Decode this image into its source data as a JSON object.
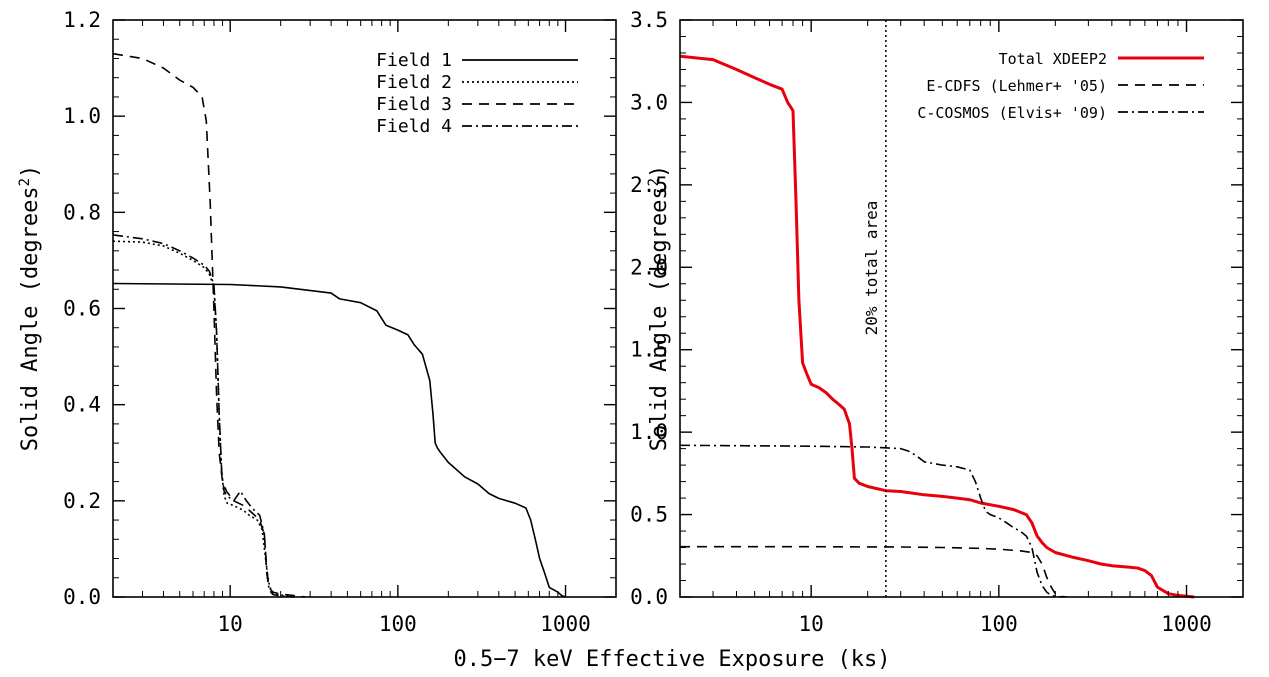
{
  "figure_xlabel": "0.5−7 keV Effective Exposure (ks)",
  "chart_data": [
    {
      "type": "line",
      "panel": "left",
      "ylabel": "Solid Angle (degrees",
      "ylabel_sup": "2",
      "ylabel_close": ")",
      "xscale": "log",
      "xlim": [
        2,
        2000
      ],
      "ylim": [
        0,
        1.2
      ],
      "xticks": [
        10,
        100,
        1000
      ],
      "xtick_labels": [
        "10",
        "100",
        "1000"
      ],
      "yticks": [
        0,
        0.2,
        0.4,
        0.6,
        0.8,
        1.0,
        1.2
      ],
      "ytick_labels": [
        "0.0",
        "0.2",
        "0.4",
        "0.6",
        "0.8",
        "1.0",
        "1.2"
      ],
      "legend_position": "top-right",
      "series": [
        {
          "name": "Field 1",
          "style": "solid",
          "color": "#000000",
          "x": [
            2,
            10,
            20,
            40,
            45,
            60,
            75,
            85,
            100,
            115,
            125,
            140,
            155,
            162,
            167,
            172,
            180,
            200,
            250,
            300,
            350,
            400,
            500,
            580,
            620,
            660,
            700,
            750,
            800,
            850,
            900,
            950,
            1000
          ],
          "y": [
            0.652,
            0.65,
            0.645,
            0.632,
            0.62,
            0.612,
            0.595,
            0.565,
            0.555,
            0.545,
            0.525,
            0.505,
            0.45,
            0.38,
            0.32,
            0.31,
            0.3,
            0.28,
            0.25,
            0.235,
            0.215,
            0.205,
            0.195,
            0.185,
            0.16,
            0.12,
            0.08,
            0.05,
            0.02,
            0.015,
            0.01,
            0.003,
            0.0
          ]
        },
        {
          "name": "Field 2",
          "style": "dotted",
          "color": "#000000",
          "x": [
            2,
            3,
            4,
            5,
            6,
            7,
            7.5,
            8,
            8.3,
            8.6,
            8.9,
            9.2,
            9.6,
            10.5,
            12,
            13,
            14.5,
            15.5,
            16,
            16.5,
            17,
            17.5,
            18,
            20,
            22,
            24
          ],
          "y": [
            0.74,
            0.738,
            0.73,
            0.715,
            0.7,
            0.685,
            0.672,
            0.645,
            0.55,
            0.38,
            0.26,
            0.21,
            0.195,
            0.19,
            0.18,
            0.17,
            0.16,
            0.14,
            0.1,
            0.06,
            0.03,
            0.015,
            0.008,
            0.004,
            0.002,
            0.0
          ]
        },
        {
          "name": "Field 3",
          "style": "dashed",
          "color": "#000000",
          "x": [
            2,
            3,
            4,
            5,
            6,
            6.8,
            7.2,
            7.6,
            8.0,
            8.3,
            8.6,
            9.0,
            9.5,
            10.5,
            12,
            13,
            14,
            15,
            16,
            16.5,
            17,
            18,
            20,
            24,
            28
          ],
          "y": [
            1.13,
            1.12,
            1.1,
            1.075,
            1.06,
            1.04,
            0.99,
            0.82,
            0.6,
            0.42,
            0.3,
            0.24,
            0.22,
            0.2,
            0.19,
            0.18,
            0.17,
            0.16,
            0.13,
            0.05,
            0.02,
            0.01,
            0.006,
            0.003,
            0.0
          ]
        },
        {
          "name": "Field 4",
          "style": "dashdot",
          "color": "#000000",
          "x": [
            2,
            3,
            4,
            5,
            6,
            7,
            7.5,
            8,
            8.3,
            8.6,
            8.9,
            9.2,
            9.6,
            10.5,
            11.5,
            12.5,
            13.5,
            15,
            16,
            16.5,
            17,
            17.5,
            18,
            20,
            24
          ],
          "y": [
            0.753,
            0.745,
            0.735,
            0.72,
            0.705,
            0.69,
            0.678,
            0.65,
            0.55,
            0.38,
            0.26,
            0.22,
            0.21,
            0.2,
            0.22,
            0.2,
            0.185,
            0.17,
            0.13,
            0.06,
            0.02,
            0.01,
            0.005,
            0.002,
            0.0
          ]
        }
      ]
    },
    {
      "type": "line",
      "panel": "right",
      "ylabel": "Solid Angle (degrees",
      "ylabel_sup": "2",
      "ylabel_close": ")",
      "xscale": "log",
      "xlim": [
        2,
        2000
      ],
      "ylim": [
        0,
        3.5
      ],
      "xticks": [
        10,
        100,
        1000
      ],
      "xtick_labels": [
        "10",
        "100",
        "1000"
      ],
      "yticks": [
        0,
        0.5,
        1.0,
        1.5,
        2.0,
        2.5,
        3.0,
        3.5
      ],
      "ytick_labels": [
        "0.0",
        "0.5",
        "1.0",
        "1.5",
        "2.0",
        "2.5",
        "3.0",
        "3.5"
      ],
      "legend_position": "top-right",
      "annotation": {
        "text": "20% total area",
        "x": 25,
        "orientation": "vertical"
      },
      "series": [
        {
          "name": "Total XDEEP2",
          "style": "solid",
          "color": "#e8000b",
          "x": [
            2,
            3,
            4,
            5,
            6,
            7,
            7.5,
            8,
            8.3,
            8.6,
            9,
            9.5,
            10,
            11,
            12,
            13,
            14,
            15,
            16,
            16.5,
            17,
            18,
            20,
            25,
            30,
            40,
            50,
            60,
            70,
            80,
            100,
            120,
            140,
            150,
            160,
            170,
            180,
            200,
            250,
            300,
            350,
            400,
            500,
            550,
            600,
            650,
            700,
            800,
            900,
            1000,
            1100
          ],
          "y": [
            3.28,
            3.26,
            3.2,
            3.15,
            3.11,
            3.08,
            3.0,
            2.95,
            2.4,
            1.8,
            1.42,
            1.35,
            1.29,
            1.27,
            1.24,
            1.2,
            1.17,
            1.14,
            1.05,
            0.9,
            0.72,
            0.69,
            0.67,
            0.645,
            0.64,
            0.62,
            0.61,
            0.6,
            0.59,
            0.57,
            0.55,
            0.53,
            0.5,
            0.45,
            0.37,
            0.33,
            0.3,
            0.27,
            0.24,
            0.22,
            0.2,
            0.19,
            0.18,
            0.175,
            0.16,
            0.13,
            0.06,
            0.02,
            0.01,
            0.005,
            0.0
          ]
        },
        {
          "name": "E-CDFS (Lehmer+ '05)",
          "style": "dashed",
          "color": "#000000",
          "x": [
            2,
            10,
            20,
            30,
            50,
            80,
            100,
            130,
            150,
            160,
            170,
            180,
            190,
            200,
            210,
            220,
            230
          ],
          "y": [
            0.305,
            0.305,
            0.304,
            0.303,
            0.3,
            0.295,
            0.29,
            0.28,
            0.27,
            0.25,
            0.2,
            0.12,
            0.06,
            0.02,
            0.01,
            0.003,
            0.0
          ]
        },
        {
          "name": "C-COSMOS (Elvis+ '09)",
          "style": "dashdot",
          "color": "#000000",
          "x": [
            2,
            10,
            20,
            30,
            33,
            36,
            40,
            50,
            60,
            70,
            75,
            80,
            85,
            90,
            100,
            110,
            120,
            130,
            140,
            150,
            160,
            170,
            180,
            190,
            200,
            210,
            220
          ],
          "y": [
            0.92,
            0.915,
            0.91,
            0.9,
            0.885,
            0.86,
            0.82,
            0.8,
            0.79,
            0.77,
            0.7,
            0.6,
            0.52,
            0.5,
            0.48,
            0.45,
            0.42,
            0.4,
            0.37,
            0.3,
            0.15,
            0.07,
            0.03,
            0.01,
            0.005,
            0.002,
            0.0
          ]
        }
      ]
    }
  ]
}
